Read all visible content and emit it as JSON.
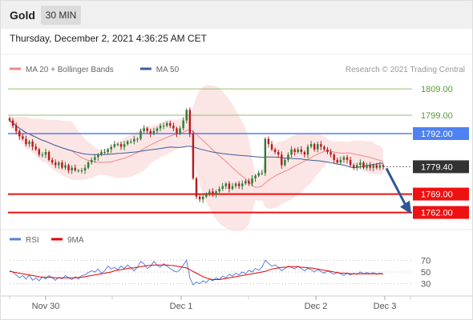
{
  "header": {
    "title": "Gold",
    "timeframe": "30 MIN"
  },
  "timestamp": "Thursday, December 2, 2021 4:36:25 AM CET",
  "credit": "Research © 2021 Trading Central",
  "colors": {
    "bollinger": "#f0898a",
    "ma50": "#3a5d9c",
    "green_level": "#8dc26f",
    "blue_level": "#4f81f0",
    "red_level": "#ee1111",
    "current_price": "#333333",
    "arrow": "#2f5795",
    "rsi": "#5a7fde",
    "rsi_ma": "#e60000",
    "candle_up": "#2e7d32",
    "candle_down": "#b71c1c"
  },
  "chart_data": [
    {
      "type": "line",
      "title": "Gold 30 MIN",
      "legend": [
        {
          "name": "MA 20 + Bollinger Bands",
          "color": "#f0898a"
        },
        {
          "name": "MA 50",
          "color": "#3a5d9c"
        }
      ],
      "legend_position": "top-left",
      "x_ticks": [
        "Nov 30",
        "Dec 1",
        "Dec 2",
        "Dec 3"
      ],
      "ylim": [
        1757,
        1813
      ],
      "levels": [
        {
          "value": 1809.0,
          "label": "1809.00",
          "kind": "resistance"
        },
        {
          "value": 1799.0,
          "label": "1799.00",
          "kind": "resistance"
        },
        {
          "value": 1792.0,
          "label": "1792.00",
          "kind": "pivot"
        },
        {
          "value": 1779.4,
          "label": "1779.40",
          "kind": "last"
        },
        {
          "value": 1769.0,
          "label": "1769.00",
          "kind": "support"
        },
        {
          "value": 1762.0,
          "label": "1762.00",
          "kind": "support"
        }
      ],
      "forecast_arrow": {
        "from": 1779.4,
        "to": 1762.0
      },
      "close": [
        1797,
        1795,
        1793,
        1791,
        1790,
        1788,
        1789,
        1787,
        1786,
        1784,
        1784,
        1785,
        1782,
        1781,
        1780,
        1781,
        1779,
        1780,
        1778,
        1779,
        1778,
        1778,
        1778,
        1779,
        1781,
        1782,
        1783,
        1784,
        1785,
        1785,
        1786,
        1787,
        1788,
        1788,
        1787,
        1788,
        1789,
        1789,
        1790,
        1790,
        1793,
        1794,
        1793,
        1792,
        1793,
        1794,
        1795,
        1795,
        1796,
        1795,
        1794,
        1792,
        1794,
        1797,
        1801,
        1792,
        1775,
        1768,
        1767,
        1768,
        1769,
        1770,
        1769,
        1770,
        1771,
        1772,
        1773,
        1771,
        1772,
        1773,
        1772,
        1773,
        1774,
        1773,
        1775,
        1776,
        1777,
        1777,
        1790,
        1788,
        1786,
        1785,
        1784,
        1780,
        1782,
        1784,
        1786,
        1785,
        1786,
        1785,
        1784,
        1787,
        1788,
        1786,
        1788,
        1787,
        1786,
        1785,
        1784,
        1782,
        1781,
        1782,
        1783,
        1782,
        1780,
        1779,
        1780,
        1781,
        1779,
        1780,
        1779,
        1780,
        1779,
        1780,
        1779.4
      ]
    },
    {
      "type": "line",
      "title": "RSI",
      "legend": [
        {
          "name": "RSI",
          "color": "#5a7fde"
        },
        {
          "name": "9MA",
          "color": "#e60000"
        }
      ],
      "legend_position": "top-left",
      "y_ticks": [
        70,
        50,
        30
      ],
      "ylim": [
        20,
        80
      ],
      "rsi": [
        52,
        50,
        45,
        40,
        44,
        38,
        45,
        36,
        40,
        35,
        42,
        38,
        44,
        40,
        36,
        41,
        38,
        44,
        40,
        37,
        42,
        38,
        44,
        45,
        49,
        52,
        50,
        55,
        48,
        52,
        60,
        55,
        58,
        54,
        60,
        56,
        62,
        57,
        52,
        58,
        68,
        64,
        56,
        60,
        68,
        62,
        58,
        64,
        60,
        56,
        52,
        50,
        54,
        62,
        70,
        40,
        28,
        33,
        30,
        35,
        32,
        38,
        35,
        40,
        37,
        43,
        40,
        46,
        43,
        48,
        45,
        50,
        47,
        53,
        50,
        56,
        53,
        58,
        70,
        65,
        60,
        62,
        58,
        52,
        56,
        60,
        58,
        55,
        60,
        56,
        52,
        56,
        54,
        50,
        54,
        51,
        48,
        52,
        49,
        46,
        50,
        47,
        44,
        48,
        45,
        48,
        46,
        50,
        47,
        49,
        47,
        49,
        46,
        48,
        47
      ],
      "rsi_ma": [
        51,
        50,
        49,
        48,
        47,
        46,
        45,
        44,
        43,
        42,
        41,
        41,
        41,
        41,
        40,
        40,
        40,
        40,
        40,
        40,
        40,
        41,
        41,
        42,
        43,
        44,
        45,
        46,
        47,
        48,
        49,
        50,
        52,
        53,
        54,
        55,
        56,
        57,
        57,
        58,
        59,
        60,
        61,
        61,
        62,
        62,
        62,
        62,
        62,
        61,
        61,
        60,
        59,
        58,
        57,
        54,
        51,
        48,
        45,
        42,
        40,
        38,
        37,
        37,
        37,
        38,
        39,
        40,
        41,
        42,
        43,
        44,
        45,
        46,
        47,
        48,
        49,
        50,
        51,
        53,
        55,
        56,
        57,
        58,
        58,
        59,
        59,
        59,
        59,
        58,
        58,
        57,
        57,
        56,
        55,
        54,
        53,
        52,
        51,
        50,
        49,
        48,
        48,
        48,
        47,
        47,
        47,
        47,
        47,
        47,
        47,
        47,
        47,
        47,
        47
      ]
    }
  ]
}
